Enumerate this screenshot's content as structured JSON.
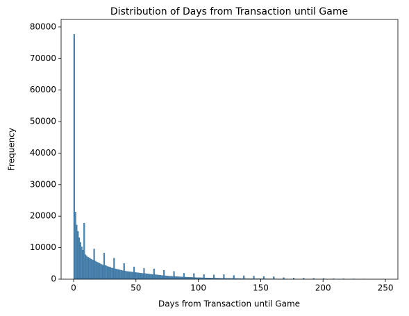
{
  "chart_data": {
    "type": "histogram",
    "title": "Distribution of Days from Transaction until Game",
    "x_label": "Days from Transaction until Game",
    "y_label": "Frequency",
    "color": "#4c87b3",
    "edge_color": "#2f6188",
    "bins": [
      0,
      1,
      2,
      3,
      4,
      5,
      6,
      7,
      8,
      9,
      10,
      11,
      12,
      13,
      14,
      15,
      16,
      17,
      18,
      19,
      20,
      21,
      22,
      23,
      24,
      25,
      26,
      27,
      28,
      29,
      30,
      31,
      32,
      33,
      34,
      35,
      36,
      37,
      38,
      39,
      40,
      41,
      42,
      43,
      44,
      45,
      46,
      47,
      48,
      49,
      50,
      51,
      52,
      53,
      54,
      55,
      56,
      57,
      58,
      59,
      60,
      61,
      62,
      63,
      64,
      65,
      66,
      67,
      68,
      69,
      70,
      71,
      72,
      73,
      74,
      75,
      76,
      77,
      78,
      79,
      80,
      81,
      82,
      83,
      84,
      85,
      86,
      87,
      88,
      89,
      90,
      91,
      92,
      93,
      94,
      95,
      96,
      97,
      98,
      99,
      100,
      101,
      102,
      103,
      104,
      105,
      106,
      107,
      108,
      109,
      110,
      111,
      112,
      113,
      114,
      115,
      116,
      117,
      118,
      119,
      120,
      121,
      122,
      123,
      124,
      125,
      126,
      127,
      128,
      129,
      130,
      131,
      132,
      133,
      134,
      135,
      136,
      137,
      138,
      139,
      140,
      141,
      142,
      143,
      144,
      145,
      146,
      147,
      148,
      149,
      150,
      151,
      152,
      153,
      154,
      155,
      156,
      157,
      158,
      159,
      160,
      161,
      162,
      163,
      164,
      165,
      166,
      167,
      168,
      169,
      170,
      171,
      172,
      173,
      174,
      175,
      176,
      177,
      178,
      179,
      180,
      181,
      182,
      183,
      184,
      185,
      186,
      187,
      188,
      189,
      190,
      191,
      192,
      193,
      194,
      195,
      196,
      197,
      198,
      199,
      200,
      201,
      202,
      203,
      204,
      205,
      206,
      207,
      208,
      209,
      210,
      211,
      212,
      213,
      214,
      215,
      216,
      217,
      218,
      219,
      220,
      221,
      222,
      223,
      224,
      225,
      226,
      227,
      228,
      229,
      230,
      231,
      232,
      233,
      234,
      235,
      236,
      237,
      238,
      239,
      240,
      241,
      242,
      243,
      244,
      245,
      246,
      247,
      248,
      249,
      250
    ],
    "counts": [
      77700,
      21300,
      17200,
      15200,
      13200,
      11700,
      10300,
      9200,
      17800,
      7800,
      7400,
      7000,
      6800,
      6500,
      6300,
      6100,
      9600,
      5800,
      5500,
      5300,
      5100,
      4900,
      4700,
      4500,
      8300,
      4400,
      4200,
      4000,
      3900,
      3800,
      3600,
      3500,
      6700,
      3300,
      3200,
      3100,
      3000,
      2900,
      2800,
      2700,
      5000,
      2600,
      2500,
      2450,
      2400,
      2350,
      2300,
      2250,
      3900,
      2150,
      2100,
      2050,
      2000,
      1950,
      1900,
      1850,
      3500,
      1800,
      1750,
      1700,
      1650,
      1600,
      1550,
      1500,
      3300,
      1450,
      1400,
      1350,
      1300,
      1250,
      1200,
      1150,
      2800,
      1100,
      1050,
      1000,
      980,
      950,
      920,
      900,
      2500,
      860,
      830,
      800,
      780,
      760,
      740,
      720,
      1900,
      680,
      660,
      640,
      620,
      600,
      580,
      560,
      1800,
      530,
      510,
      500,
      490,
      470,
      460,
      450,
      1500,
      430,
      420,
      410,
      400,
      390,
      380,
      370,
      1400,
      350,
      340,
      330,
      320,
      310,
      300,
      290,
      1500,
      280,
      270,
      265,
      260,
      255,
      250,
      245,
      1200,
      235,
      230,
      225,
      220,
      215,
      210,
      205,
      1100,
      195,
      190,
      185,
      180,
      176,
      172,
      168,
      1000,
      160,
      156,
      152,
      148,
      144,
      140,
      137,
      900,
      131,
      128,
      125,
      122,
      119,
      116,
      113,
      800,
      107,
      104,
      101,
      98,
      95,
      92,
      90,
      500,
      86,
      84,
      82,
      80,
      78,
      76,
      74,
      400,
      70,
      68,
      66,
      64,
      62,
      60,
      58,
      350,
      55,
      53,
      51,
      50,
      48,
      47,
      45,
      300,
      43,
      42,
      40,
      39,
      38,
      37,
      36,
      250,
      34,
      33,
      32,
      31,
      30,
      29,
      28,
      200,
      26,
      25,
      24,
      23,
      22,
      22,
      21,
      150,
      20,
      19,
      18,
      18,
      17,
      16,
      16,
      120,
      15,
      14,
      14,
      13,
      13,
      12,
      12,
      100,
      11,
      10,
      10,
      9,
      9,
      8,
      8,
      80,
      7,
      7,
      6,
      6,
      6,
      5,
      5,
      60,
      5
    ],
    "xlim": [
      -10,
      260
    ],
    "xticks": [
      0,
      50,
      100,
      150,
      200,
      250
    ],
    "ylim": [
      0,
      82400
    ],
    "yticks": [
      0,
      10000,
      20000,
      30000,
      40000,
      50000,
      60000,
      70000,
      80000
    ]
  }
}
